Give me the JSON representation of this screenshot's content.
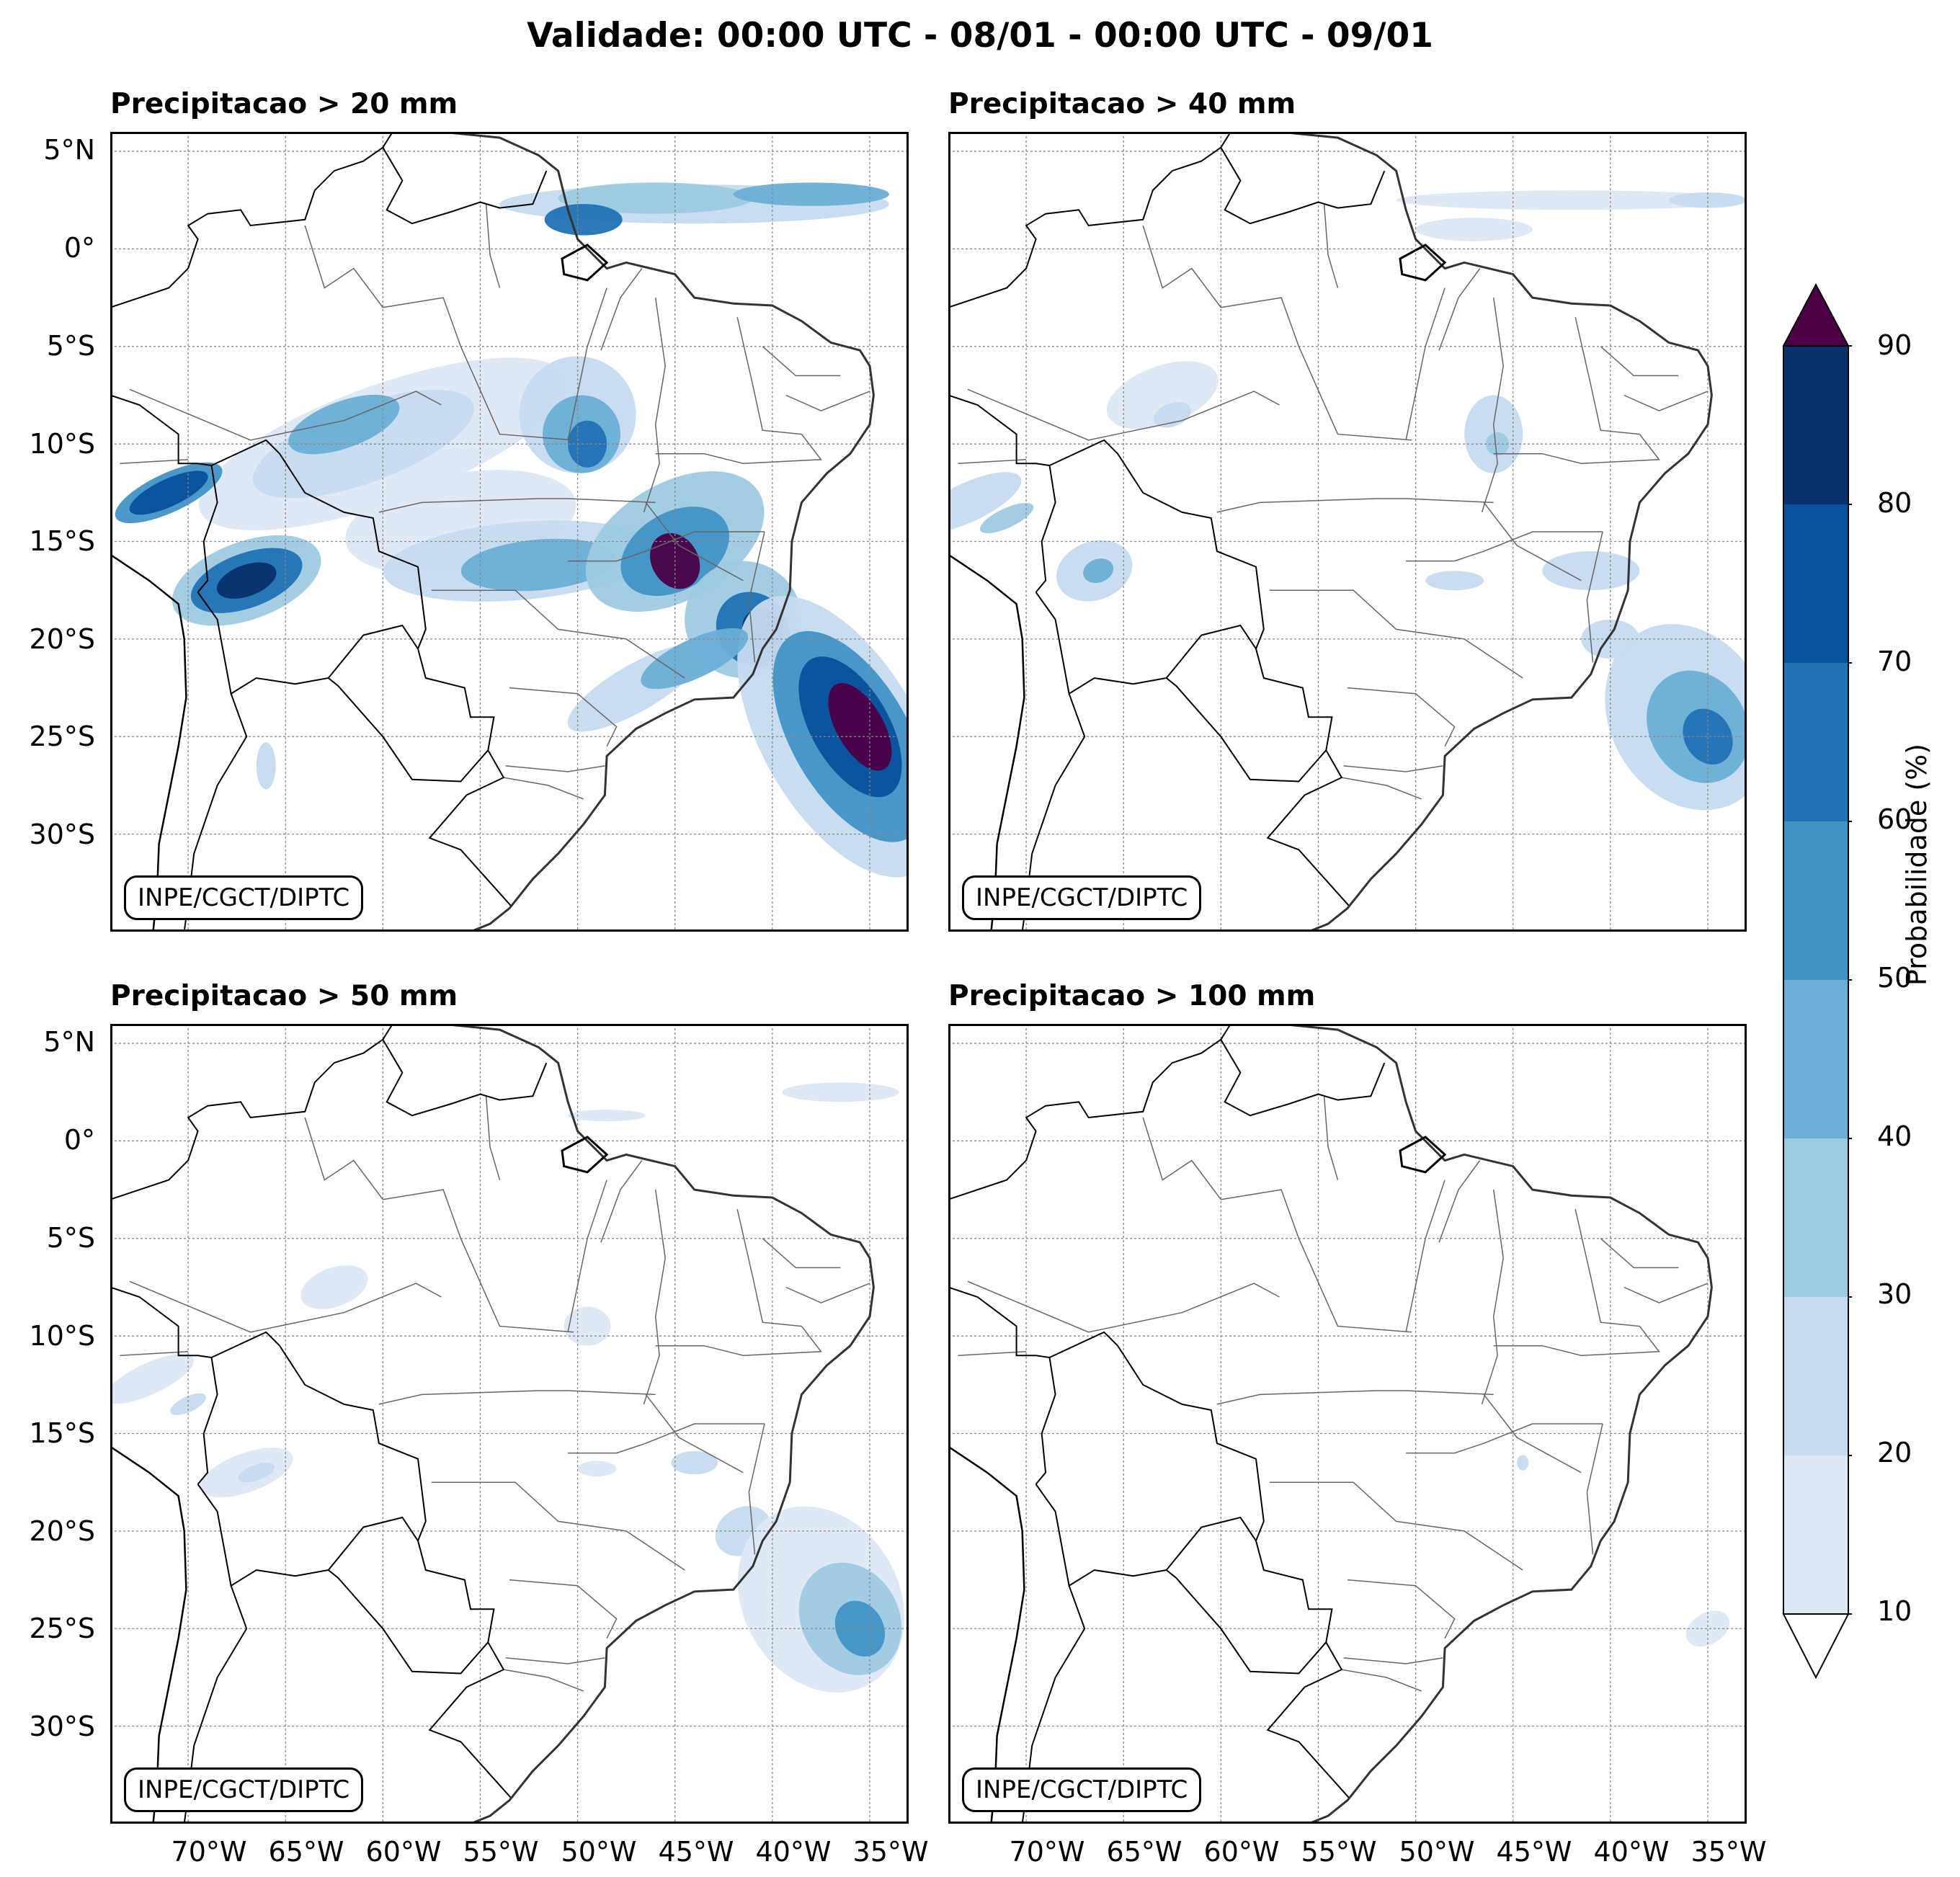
{
  "title": "Validade: 00:00 UTC - 08/01 - 00:00 UTC - 09/01",
  "panels": [
    {
      "title": "Precipitacao > 20 mm",
      "credit": "INPE/CGCT/DIPTC"
    },
    {
      "title": "Precipitacao > 40 mm",
      "credit": "INPE/CGCT/DIPTC"
    },
    {
      "title": "Precipitacao > 50 mm",
      "credit": "INPE/CGCT/DIPTC"
    },
    {
      "title": "Precipitacao > 100 mm",
      "credit": "INPE/CGCT/DIPTC"
    }
  ],
  "lat_labels": [
    "5°N",
    "0°",
    "5°S",
    "10°S",
    "15°S",
    "20°S",
    "25°S",
    "30°S"
  ],
  "lon_labels": [
    "70°W",
    "65°W",
    "60°W",
    "55°W",
    "50°W",
    "45°W",
    "40°W",
    "35°W"
  ],
  "colorbar": {
    "label": "Probabilidade (%)",
    "ticks": [
      "10",
      "20",
      "30",
      "40",
      "50",
      "60",
      "70",
      "80",
      "90"
    ],
    "colors": [
      "#dde8f5",
      "#c6dbef",
      "#9ecae1",
      "#6baed6",
      "#4292c6",
      "#2171b5",
      "#08519c",
      "#08306b"
    ],
    "over_color": "#4d0047"
  },
  "map_extent": {
    "lon_min": -74,
    "lon_max": -33,
    "lat_min": -35,
    "lat_max": 6
  }
}
